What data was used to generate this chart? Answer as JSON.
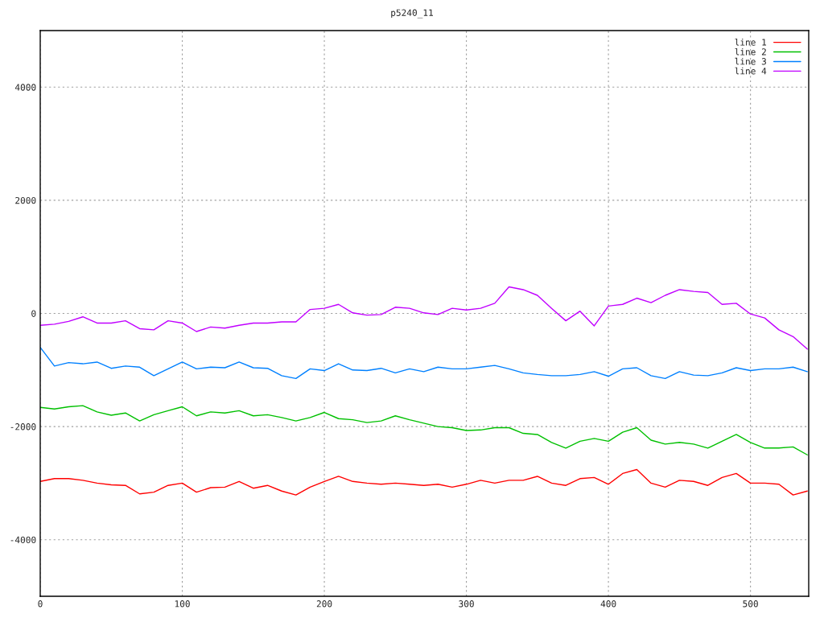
{
  "chart_data": {
    "type": "line",
    "title": "p5240_11",
    "x": [
      0,
      10,
      20,
      30,
      40,
      50,
      60,
      70,
      80,
      90,
      100,
      110,
      120,
      130,
      140,
      150,
      160,
      170,
      180,
      190,
      200,
      210,
      220,
      230,
      240,
      250,
      260,
      270,
      280,
      290,
      300,
      310,
      320,
      330,
      340,
      350,
      360,
      370,
      380,
      390,
      400,
      410,
      420,
      430,
      440,
      450,
      460,
      470,
      480,
      490,
      500,
      510,
      520,
      530,
      540
    ],
    "series": [
      {
        "name": "line 1",
        "color": "#ff0000",
        "values": [
          -2970,
          -2920,
          -2920,
          -2950,
          -3000,
          -3030,
          -3040,
          -3190,
          -3160,
          -3040,
          -3000,
          -3160,
          -3080,
          -3070,
          -2970,
          -3090,
          -3040,
          -3140,
          -3210,
          -3070,
          -2970,
          -2880,
          -2970,
          -3000,
          -3020,
          -3000,
          -3020,
          -3040,
          -3020,
          -3070,
          -3020,
          -2950,
          -3000,
          -2950,
          -2950,
          -2880,
          -3000,
          -3040,
          -2920,
          -2900,
          -3020,
          -2830,
          -2760,
          -3000,
          -3070,
          -2950,
          -2970,
          -3040,
          -2900,
          -2830,
          -3000,
          -3000,
          -3020,
          -3210,
          -3140
        ]
      },
      {
        "name": "line 2",
        "color": "#00c000",
        "values": [
          -1660,
          -1690,
          -1650,
          -1630,
          -1740,
          -1800,
          -1760,
          -1900,
          -1790,
          -1720,
          -1650,
          -1810,
          -1740,
          -1760,
          -1720,
          -1810,
          -1790,
          -1840,
          -1900,
          -1840,
          -1750,
          -1860,
          -1880,
          -1930,
          -1900,
          -1810,
          -1880,
          -1940,
          -2000,
          -2020,
          -2070,
          -2060,
          -2020,
          -2020,
          -2120,
          -2140,
          -2280,
          -2380,
          -2260,
          -2210,
          -2260,
          -2100,
          -2020,
          -2240,
          -2310,
          -2280,
          -2310,
          -2380,
          -2260,
          -2140,
          -2280,
          -2380,
          -2380,
          -2360,
          -2500
        ]
      },
      {
        "name": "line 3",
        "color": "#0080ff",
        "values": [
          -600,
          -930,
          -870,
          -890,
          -860,
          -970,
          -930,
          -950,
          -1100,
          -980,
          -860,
          -980,
          -950,
          -960,
          -860,
          -960,
          -970,
          -1100,
          -1150,
          -980,
          -1010,
          -890,
          -1000,
          -1010,
          -970,
          -1050,
          -980,
          -1030,
          -950,
          -980,
          -980,
          -950,
          -920,
          -980,
          -1050,
          -1080,
          -1100,
          -1100,
          -1080,
          -1030,
          -1110,
          -980,
          -960,
          -1100,
          -1150,
          -1030,
          -1090,
          -1100,
          -1050,
          -960,
          -1010,
          -980,
          -980,
          -950,
          -1030
        ]
      },
      {
        "name": "line 4",
        "color": "#c000ff",
        "values": [
          -210,
          -190,
          -140,
          -60,
          -170,
          -170,
          -130,
          -270,
          -290,
          -130,
          -170,
          -320,
          -240,
          -260,
          -210,
          -170,
          -170,
          -150,
          -150,
          70,
          90,
          160,
          10,
          -30,
          -20,
          110,
          90,
          10,
          -20,
          90,
          60,
          90,
          180,
          470,
          420,
          320,
          90,
          -130,
          40,
          -220,
          130,
          160,
          270,
          190,
          320,
          420,
          390,
          370,
          160,
          180,
          -10,
          -80,
          -290,
          -410,
          -630
        ]
      }
    ],
    "xlim": [
      0,
      541
    ],
    "ylim": [
      -5000,
      5000
    ],
    "xticks": [
      0,
      100,
      200,
      300,
      400,
      500
    ],
    "yticks": [
      -4000,
      -2000,
      0,
      2000,
      4000
    ],
    "grid": true,
    "legend": "top right",
    "line_style": "solid"
  }
}
